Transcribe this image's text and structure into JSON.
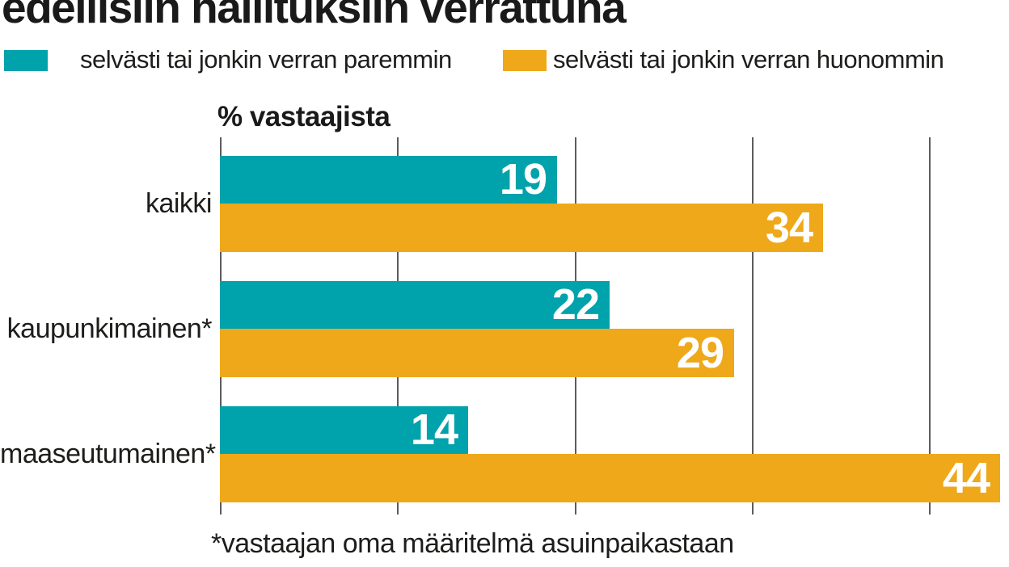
{
  "title": "edellisiin hallituksiin verrattuna",
  "axis_label": "% vastaajista",
  "footnote": "*vastaajan oma määritelmä asuinpaikastaan",
  "legend": [
    {
      "label": "selvästi tai jonkin verran paremmin",
      "color": "#00a2ab"
    },
    {
      "label": "selvästi tai jonkin verran huonommin",
      "color": "#efa81a"
    }
  ],
  "colors": {
    "better": "#00a2ab",
    "worse": "#efa81a",
    "gridline": "#5c5c5c",
    "text": "#1d1d1b",
    "value_label": "#ffffff"
  },
  "chart_data": {
    "type": "bar",
    "orientation": "horizontal",
    "unit": "%",
    "title": "edellisiin hallituksiin verrattuna",
    "axis_label": "% vastaajista",
    "footnote": "*vastaajan oma määritelmä asuinpaikastaan",
    "categories": [
      "kaikki",
      "kaupunkimainen*",
      "maaseutumainen*"
    ],
    "series": [
      {
        "name": "selvästi tai jonkin verran paremmin",
        "color": "#00a2ab",
        "values": [
          19,
          22,
          14
        ]
      },
      {
        "name": "selvästi tai jonkin verran huonommin",
        "color": "#efa81a",
        "values": [
          34,
          29,
          44
        ]
      }
    ],
    "x_axis": {
      "min": 0,
      "max": 40,
      "tick_step": 10,
      "gridlines": true,
      "tick_labels_shown": false
    },
    "legend_position": "top",
    "value_labels": "inside-end"
  }
}
